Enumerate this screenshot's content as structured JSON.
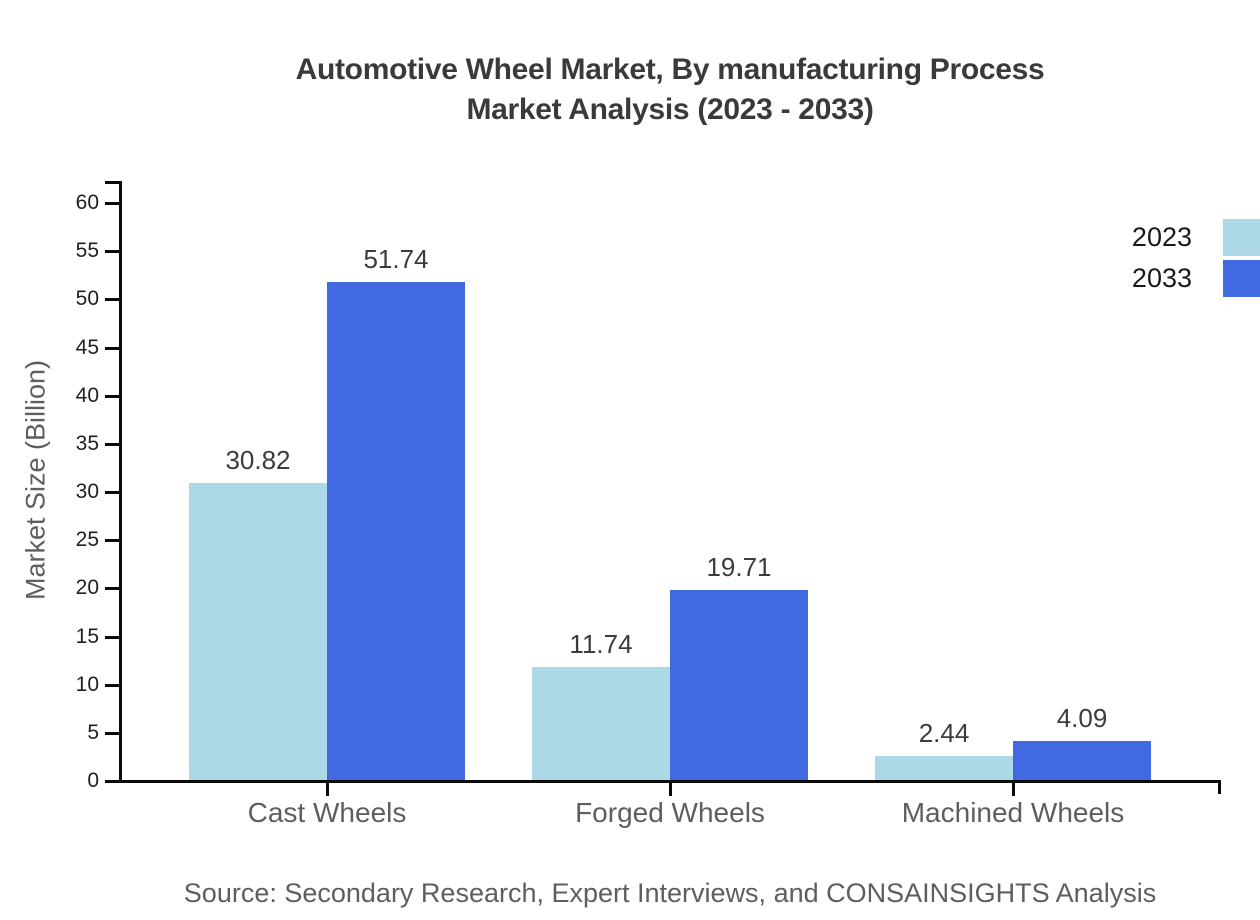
{
  "title": {
    "line1": "Automotive Wheel Market, By manufacturing Process",
    "line2": "Market Analysis (2023 - 2033)"
  },
  "source_text": "Source: Secondary Research, Expert Interviews, and CONSAINSIGHTS Analysis",
  "chart_data": {
    "type": "bar",
    "title": "Automotive Wheel Market, By manufacturing Process Market Analysis (2023 - 2033)",
    "xlabel": "",
    "ylabel": "Market Size (Billion)",
    "categories": [
      "Cast Wheels",
      "Forged Wheels",
      "Machined Wheels"
    ],
    "series": [
      {
        "name": "2023",
        "color": "#ADD8E6",
        "values": [
          30.82,
          11.74,
          2.44
        ]
      },
      {
        "name": "2033",
        "color": "#4169E1",
        "values": [
          51.74,
          19.71,
          4.09
        ]
      }
    ],
    "ylim": [
      0,
      60
    ],
    "ytick_step": 5,
    "grid": false,
    "legend_position": "top-right",
    "value_labels_decimals": 2,
    "axis_color": "#0a0a0a"
  }
}
